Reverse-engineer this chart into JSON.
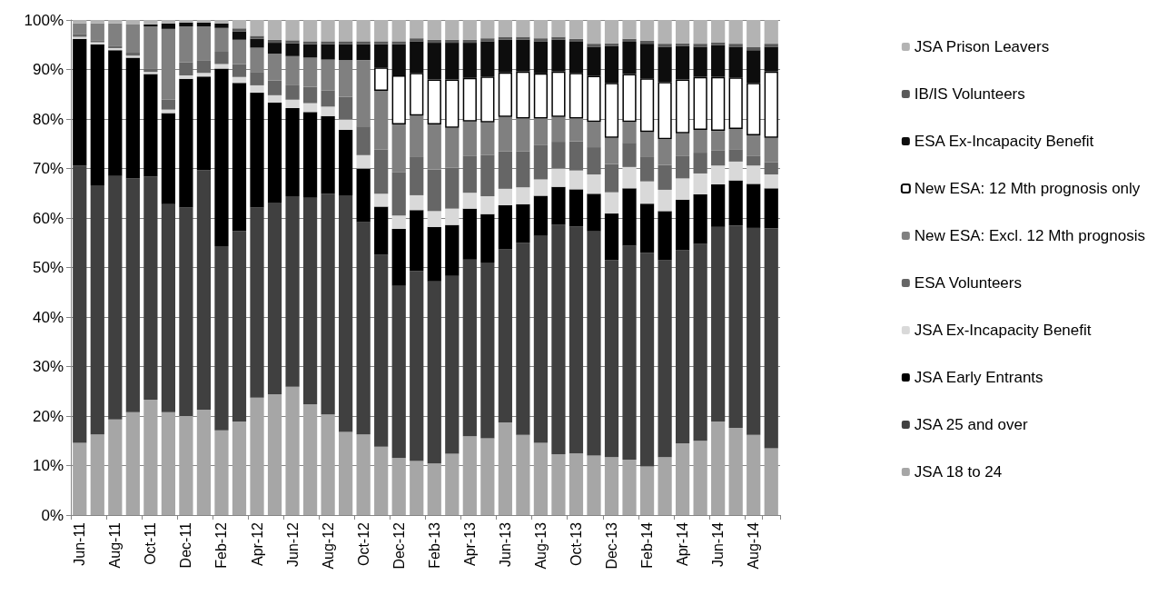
{
  "chart_data": {
    "type": "bar",
    "stacked": true,
    "categories": [
      "Jun-11",
      null,
      "Aug-11",
      null,
      "Oct-11",
      null,
      "Dec-11",
      null,
      "Feb-12",
      null,
      "Apr-12",
      null,
      "Jun-12",
      null,
      "Aug-12",
      null,
      "Oct-12",
      null,
      "Dec-12",
      null,
      "Feb-13",
      null,
      "Apr-13",
      null,
      "Jun-13",
      null,
      "Aug-13",
      null,
      "Oct-13",
      null,
      "Dec-13",
      null,
      "Feb-14",
      null,
      "Apr-14",
      null,
      "Jun-14",
      null,
      "Aug-14",
      null
    ],
    "ylim": [
      0,
      100
    ],
    "yticks": [
      {
        "value": 0,
        "label": "0%"
      },
      {
        "value": 10,
        "label": "10%"
      },
      {
        "value": 20,
        "label": "20%"
      },
      {
        "value": 30,
        "label": "30%"
      },
      {
        "value": 40,
        "label": "40%"
      },
      {
        "value": 50,
        "label": "50%"
      },
      {
        "value": 60,
        "label": "60%"
      },
      {
        "value": 70,
        "label": "70%"
      },
      {
        "value": 80,
        "label": "80%"
      },
      {
        "value": 90,
        "label": "90%"
      },
      {
        "value": 100,
        "label": "100%"
      }
    ],
    "grid": "y",
    "legend": "right",
    "series": [
      {
        "name": "JSA 18 to 24",
        "color": "#a6a6a6",
        "values": [
          14.6,
          16.3,
          19.3,
          20.8,
          23.3,
          20.8,
          20.0,
          21.3,
          17.1,
          18.9,
          23.7,
          24.4,
          25.9,
          22.4,
          20.3,
          16.8,
          16.3,
          13.8,
          11.5,
          10.9,
          10.4,
          12.4,
          15.9,
          15.5,
          18.7,
          16.2,
          14.6,
          12.3,
          12.5,
          12.0,
          11.7,
          11.2,
          9.8,
          11.7,
          14.5,
          15.0,
          18.9,
          17.6,
          16.2,
          13.5
        ]
      },
      {
        "name": "JSA 25 and over",
        "color": "#404040",
        "values": [
          56.0,
          50.3,
          49.2,
          47.2,
          45.1,
          42.0,
          42.1,
          48.4,
          37.2,
          38.5,
          38.4,
          38.7,
          38.5,
          41.7,
          44.6,
          47.8,
          42.9,
          38.8,
          34.9,
          38.4,
          36.8,
          35.9,
          35.7,
          35.5,
          35.0,
          38.8,
          41.8,
          46.3,
          45.8,
          45.3,
          39.8,
          43.2,
          43.2,
          39.8,
          39.0,
          39.8,
          39.3,
          40.9,
          41.8,
          44.4
        ]
      },
      {
        "name": "JSA Early Entrants",
        "color": "#000000",
        "values": [
          25.6,
          28.5,
          25.4,
          24.4,
          20.7,
          18.4,
          26.0,
          18.9,
          35.9,
          29.9,
          23.2,
          20.2,
          17.8,
          17.3,
          15.7,
          13.2,
          10.8,
          9.7,
          11.4,
          12.3,
          11.0,
          10.3,
          10.3,
          9.8,
          8.9,
          7.8,
          8.1,
          7.7,
          7.5,
          7.6,
          9.4,
          11.6,
          9.9,
          9.9,
          10.2,
          10.0,
          8.6,
          9.1,
          8.9,
          8.1
        ]
      },
      {
        "name": "JSA Ex-Incapacity Benefit",
        "color": "#d9d9d9",
        "values": [
          0.4,
          0.4,
          0.4,
          0.4,
          0.4,
          0.7,
          0.7,
          0.7,
          0.9,
          1.2,
          1.5,
          1.5,
          1.7,
          1.8,
          1.9,
          2.1,
          2.7,
          2.6,
          2.7,
          3.0,
          3.2,
          3.3,
          3.2,
          3.6,
          3.3,
          3.4,
          3.3,
          3.7,
          3.8,
          3.9,
          4.3,
          4.3,
          4.5,
          4.3,
          4.3,
          4.2,
          3.8,
          3.8,
          3.7,
          2.8
        ]
      },
      {
        "name": "ESA Volunteers",
        "color": "#666666",
        "values": [
          0.6,
          0.3,
          0.5,
          0.6,
          0.6,
          2.0,
          2.6,
          2.6,
          2.5,
          2.6,
          2.7,
          3.0,
          2.9,
          3.3,
          3.3,
          4.6,
          5.8,
          8.9,
          8.7,
          7.7,
          8.4,
          8.3,
          7.4,
          8.3,
          7.6,
          7.3,
          6.9,
          5.4,
          5.9,
          5.5,
          5.7,
          4.9,
          4.9,
          5.0,
          4.5,
          4.2,
          3.1,
          2.5,
          1.9,
          2.5
        ]
      },
      {
        "name": "New ESA: Excl. 12 Mth prognosis",
        "color": "#808080",
        "values": [
          2.1,
          3.5,
          4.5,
          5.7,
          8.6,
          14.3,
          7.3,
          6.8,
          4.8,
          4.9,
          4.9,
          5.4,
          5.9,
          5.9,
          6.2,
          7.4,
          13.4,
          11.9,
          9.7,
          8.4,
          9.1,
          8.0,
          7.0,
          6.6,
          6.9,
          6.6,
          5.4,
          5.0,
          4.6,
          5.1,
          5.3,
          4.2,
          5.1,
          5.2,
          4.6,
          4.6,
          3.9,
          4.1,
          4.2,
          4.9
        ]
      },
      {
        "name": "New ESA: 12 Mth prognosis only",
        "color": "#ffffff",
        "values": [
          0,
          0,
          0,
          0,
          0,
          0,
          0,
          0,
          0,
          0,
          0,
          0,
          0,
          0,
          0,
          0,
          0,
          4.7,
          9.9,
          8.6,
          9.1,
          9.8,
          8.8,
          9.3,
          9.0,
          9.5,
          9.1,
          9.2,
          9.2,
          9.3,
          11.1,
          9.7,
          10.8,
          11.6,
          10.9,
          10.7,
          10.9,
          10.4,
          10.6,
          13.4
        ]
      },
      {
        "name": "ESA Ex-Incapacity Benefit",
        "color": "#0d0d0d",
        "values": [
          0,
          0,
          0,
          0,
          0.4,
          1.1,
          0.8,
          0.8,
          0.9,
          1.7,
          1.8,
          2.2,
          2.6,
          2.7,
          3.1,
          3.2,
          3.2,
          4.7,
          6.3,
          6.4,
          7.4,
          7.4,
          7.1,
          7.1,
          6.6,
          6.4,
          6.5,
          6.4,
          6.3,
          5.9,
          7.4,
          6.5,
          7.0,
          7.1,
          6.7,
          6.1,
          6.4,
          6.2,
          6.6,
          5.0
        ]
      },
      {
        "name": "IB/IS Volunteers",
        "color": "#595959",
        "values": [
          0,
          0,
          0,
          0,
          0,
          0,
          0,
          0,
          0,
          0.6,
          0.6,
          0.6,
          0.6,
          0.6,
          0.6,
          0.6,
          0.6,
          0.6,
          0.6,
          0.6,
          0.6,
          0.6,
          0.6,
          0.6,
          0.6,
          0.6,
          0.6,
          0.6,
          0.6,
          0.6,
          0.6,
          0.6,
          0.6,
          0.6,
          0.6,
          0.6,
          0.6,
          0.6,
          0.6,
          0.6
        ]
      },
      {
        "name": "JSA Prison Leavers",
        "color": "#b3b3b3",
        "values": [
          0.7,
          0.7,
          0.7,
          0.9,
          0.9,
          0.7,
          0.5,
          0.5,
          0.7,
          1.7,
          3.2,
          4.0,
          4.1,
          4.3,
          4.3,
          4.3,
          4.3,
          4.3,
          4.3,
          3.7,
          4.0,
          4.0,
          4.0,
          3.7,
          3.4,
          3.4,
          3.7,
          3.4,
          3.8,
          4.8,
          4.7,
          3.8,
          4.2,
          4.8,
          4.7,
          4.8,
          4.5,
          4.8,
          5.5,
          4.8
        ]
      }
    ]
  }
}
